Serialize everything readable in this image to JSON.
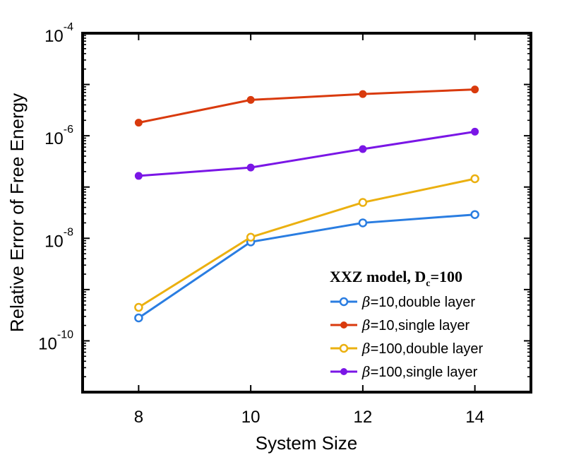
{
  "chart_data": {
    "type": "line",
    "title": "",
    "xlabel": "System Size",
    "ylabel": "Relative Error of Free Energy",
    "yscale": "log",
    "xlim": [
      7,
      15
    ],
    "ylim_exponent": [
      -11,
      -4
    ],
    "x": [
      8,
      10,
      12,
      14
    ],
    "x_ticks": [
      "8",
      "10",
      "12",
      "14"
    ],
    "y_ticks": [
      {
        "exp": -4,
        "base": "10",
        "sup": "-4"
      },
      {
        "exp": -6,
        "base": "10",
        "sup": "-6"
      },
      {
        "exp": -8,
        "base": "10",
        "sup": "-8"
      },
      {
        "exp": -10,
        "base": "10",
        "sup": "-10"
      }
    ],
    "legend": {
      "title": "XXZ  model, D",
      "title_sub": "c",
      "title_suffix": "=100",
      "position": "bottom-right"
    },
    "series": [
      {
        "name": "β=10,double layer",
        "greek": "β",
        "label": "=10,double layer",
        "color": "#2a7de1",
        "marker": "open",
        "values": [
          2.8e-10,
          8.5e-09,
          2e-08,
          2.9e-08
        ]
      },
      {
        "name": "β=10,single layer",
        "greek": "β",
        "label": "=10,single layer",
        "color": "#d93a0d",
        "marker": "filled",
        "values": [
          1.8e-06,
          5e-06,
          6.5e-06,
          8e-06
        ]
      },
      {
        "name": "β=100,double layer",
        "greek": "β",
        "label": "=100,double layer",
        "color": "#ebb010",
        "marker": "open",
        "values": [
          4.5e-10,
          1.05e-08,
          5e-08,
          1.45e-07
        ]
      },
      {
        "name": "β=100,single layer",
        "greek": "β",
        "label": "=100,single layer",
        "color": "#7a16e6",
        "marker": "filled",
        "values": [
          1.65e-07,
          2.4e-07,
          5.5e-07,
          1.2e-06
        ]
      }
    ]
  }
}
